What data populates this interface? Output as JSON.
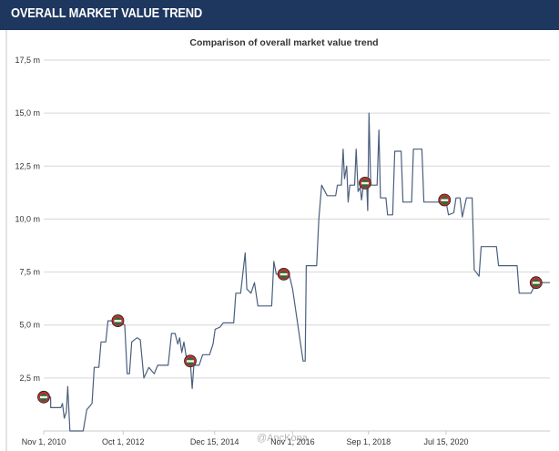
{
  "header": {
    "title": "OVERALL MARKET VALUE TREND"
  },
  "watermark": "@AncKona",
  "colors": {
    "header_bg": "#1d375e",
    "line": "#4a5f7e",
    "grid": "#d6d6d6",
    "marker_rim": "#c03030",
    "marker_face": "#2f6b35"
  },
  "chart_data": {
    "type": "line",
    "title": "Comparison of overall market value trend",
    "xlabel": "",
    "ylabel": "",
    "ylim": [
      0,
      17.5
    ],
    "y_ticks": [
      "2,5 m",
      "5,0 m",
      "7,5 m",
      "10,0 m",
      "12,5 m",
      "15,0 m",
      "17,5 m"
    ],
    "y_tick_values": [
      2.5,
      5.0,
      7.5,
      10.0,
      12.5,
      15.0,
      17.5
    ],
    "x_range": [
      "2010-11-01",
      "2023-01-15"
    ],
    "x_ticks": [
      {
        "label": "Nov 1, 2010",
        "date": "2010-11-01"
      },
      {
        "label": "Oct 1, 2012",
        "date": "2012-10-01"
      },
      {
        "label": "Dec 15, 2014",
        "date": "2014-12-15"
      },
      {
        "label": "Nov 1, 2016",
        "date": "2016-11-01"
      },
      {
        "label": "Sep 1, 2018",
        "date": "2018-09-01"
      },
      {
        "label": "Jul 15, 2020",
        "date": "2020-07-15"
      }
    ],
    "grid": true,
    "legend": "none",
    "series": [
      {
        "points": [
          [
            "2010-11-01",
            1.6
          ],
          [
            "2011-01-01",
            1.6
          ],
          [
            "2011-01-02",
            1.1
          ],
          [
            "2011-04-01",
            1.1
          ],
          [
            "2011-04-15",
            1.3
          ],
          [
            "2011-05-01",
            0.6
          ],
          [
            "2011-05-20",
            0.9
          ],
          [
            "2011-06-01",
            2.1
          ],
          [
            "2011-06-20",
            0.0
          ],
          [
            "2011-10-15",
            0.0
          ],
          [
            "2011-11-15",
            1.0
          ],
          [
            "2012-01-01",
            1.3
          ],
          [
            "2012-01-20",
            3.0
          ],
          [
            "2012-03-01",
            3.0
          ],
          [
            "2012-03-20",
            4.2
          ],
          [
            "2012-05-01",
            4.2
          ],
          [
            "2012-05-20",
            5.2
          ],
          [
            "2012-08-15",
            5.2
          ],
          [
            "2012-10-15",
            5.0
          ],
          [
            "2012-11-05",
            2.7
          ],
          [
            "2012-11-25",
            2.7
          ],
          [
            "2012-12-15",
            4.2
          ],
          [
            "2013-02-01",
            4.4
          ],
          [
            "2013-03-01",
            4.3
          ],
          [
            "2013-04-01",
            2.5
          ],
          [
            "2013-05-15",
            3.0
          ],
          [
            "2013-07-01",
            2.7
          ],
          [
            "2013-08-01",
            3.1
          ],
          [
            "2013-11-01",
            3.1
          ],
          [
            "2013-12-01",
            4.6
          ],
          [
            "2014-01-01",
            4.6
          ],
          [
            "2014-01-25",
            4.1
          ],
          [
            "2014-02-10",
            4.4
          ],
          [
            "2014-03-01",
            3.7
          ],
          [
            "2014-03-20",
            4.2
          ],
          [
            "2014-04-15",
            3.3
          ],
          [
            "2014-05-15",
            3.3
          ],
          [
            "2014-06-01",
            2.0
          ],
          [
            "2014-06-15",
            3.1
          ],
          [
            "2014-08-01",
            3.1
          ],
          [
            "2014-09-01",
            3.6
          ],
          [
            "2014-11-01",
            3.6
          ],
          [
            "2014-12-01",
            4.1
          ],
          [
            "2014-12-20",
            4.8
          ],
          [
            "2015-02-01",
            4.9
          ],
          [
            "2015-03-01",
            5.1
          ],
          [
            "2015-06-01",
            5.1
          ],
          [
            "2015-06-20",
            6.5
          ],
          [
            "2015-08-01",
            6.5
          ],
          [
            "2015-09-10",
            8.4
          ],
          [
            "2015-09-25",
            6.7
          ],
          [
            "2015-11-01",
            6.5
          ],
          [
            "2015-12-01",
            7.0
          ],
          [
            "2016-01-01",
            5.9
          ],
          [
            "2016-05-01",
            5.9
          ],
          [
            "2016-05-20",
            8.0
          ],
          [
            "2016-06-10",
            7.4
          ],
          [
            "2016-10-01",
            7.4
          ],
          [
            "2016-11-01",
            6.7
          ],
          [
            "2017-02-01",
            3.3
          ],
          [
            "2017-02-20",
            3.3
          ],
          [
            "2017-03-01",
            7.8
          ],
          [
            "2017-06-01",
            7.8
          ],
          [
            "2017-06-20",
            10.0
          ],
          [
            "2017-07-15",
            11.6
          ],
          [
            "2017-09-01",
            11.1
          ],
          [
            "2017-11-15",
            11.1
          ],
          [
            "2017-12-01",
            11.6
          ],
          [
            "2018-01-05",
            11.6
          ],
          [
            "2018-01-20",
            13.3
          ],
          [
            "2018-02-01",
            11.9
          ],
          [
            "2018-02-20",
            12.5
          ],
          [
            "2018-03-05",
            10.8
          ],
          [
            "2018-03-20",
            11.6
          ],
          [
            "2018-05-01",
            11.6
          ],
          [
            "2018-05-15",
            13.3
          ],
          [
            "2018-06-01",
            11.3
          ],
          [
            "2018-06-20",
            11.5
          ],
          [
            "2018-07-01",
            10.9
          ],
          [
            "2018-07-20",
            11.7
          ],
          [
            "2018-08-15",
            11.7
          ],
          [
            "2018-08-25",
            10.4
          ],
          [
            "2018-09-05",
            15.0
          ],
          [
            "2018-09-20",
            11.6
          ],
          [
            "2018-11-15",
            11.6
          ],
          [
            "2018-12-01",
            14.2
          ],
          [
            "2018-12-15",
            11.0
          ],
          [
            "2019-02-01",
            11.0
          ],
          [
            "2019-02-15",
            10.2
          ],
          [
            "2019-04-01",
            10.2
          ],
          [
            "2019-04-20",
            13.2
          ],
          [
            "2019-06-15",
            13.2
          ],
          [
            "2019-07-01",
            10.8
          ],
          [
            "2019-09-15",
            10.8
          ],
          [
            "2019-10-01",
            13.3
          ],
          [
            "2019-12-15",
            13.3
          ],
          [
            "2020-01-01",
            10.8
          ],
          [
            "2020-07-15",
            10.8
          ],
          [
            "2020-08-05",
            10.2
          ],
          [
            "2020-09-20",
            10.3
          ],
          [
            "2020-10-10",
            11.0
          ],
          [
            "2020-11-15",
            11.0
          ],
          [
            "2020-12-05",
            10.1
          ],
          [
            "2021-01-10",
            11.0
          ],
          [
            "2021-03-01",
            11.0
          ],
          [
            "2021-03-20",
            7.6
          ],
          [
            "2021-05-01",
            7.3
          ],
          [
            "2021-05-20",
            8.7
          ],
          [
            "2021-10-01",
            8.7
          ],
          [
            "2021-10-20",
            7.8
          ],
          [
            "2022-04-01",
            7.8
          ],
          [
            "2022-04-20",
            6.5
          ],
          [
            "2022-08-01",
            6.5
          ],
          [
            "2022-09-15",
            7.0
          ],
          [
            "2023-01-15",
            7.0
          ]
        ],
        "markers": [
          [
            "2010-11-01",
            1.6
          ],
          [
            "2012-08-15",
            5.2
          ],
          [
            "2014-05-15",
            3.3
          ],
          [
            "2016-08-15",
            7.4
          ],
          [
            "2018-08-01",
            11.7
          ],
          [
            "2020-07-01",
            10.9
          ],
          [
            "2022-09-15",
            7.0
          ]
        ]
      }
    ]
  }
}
